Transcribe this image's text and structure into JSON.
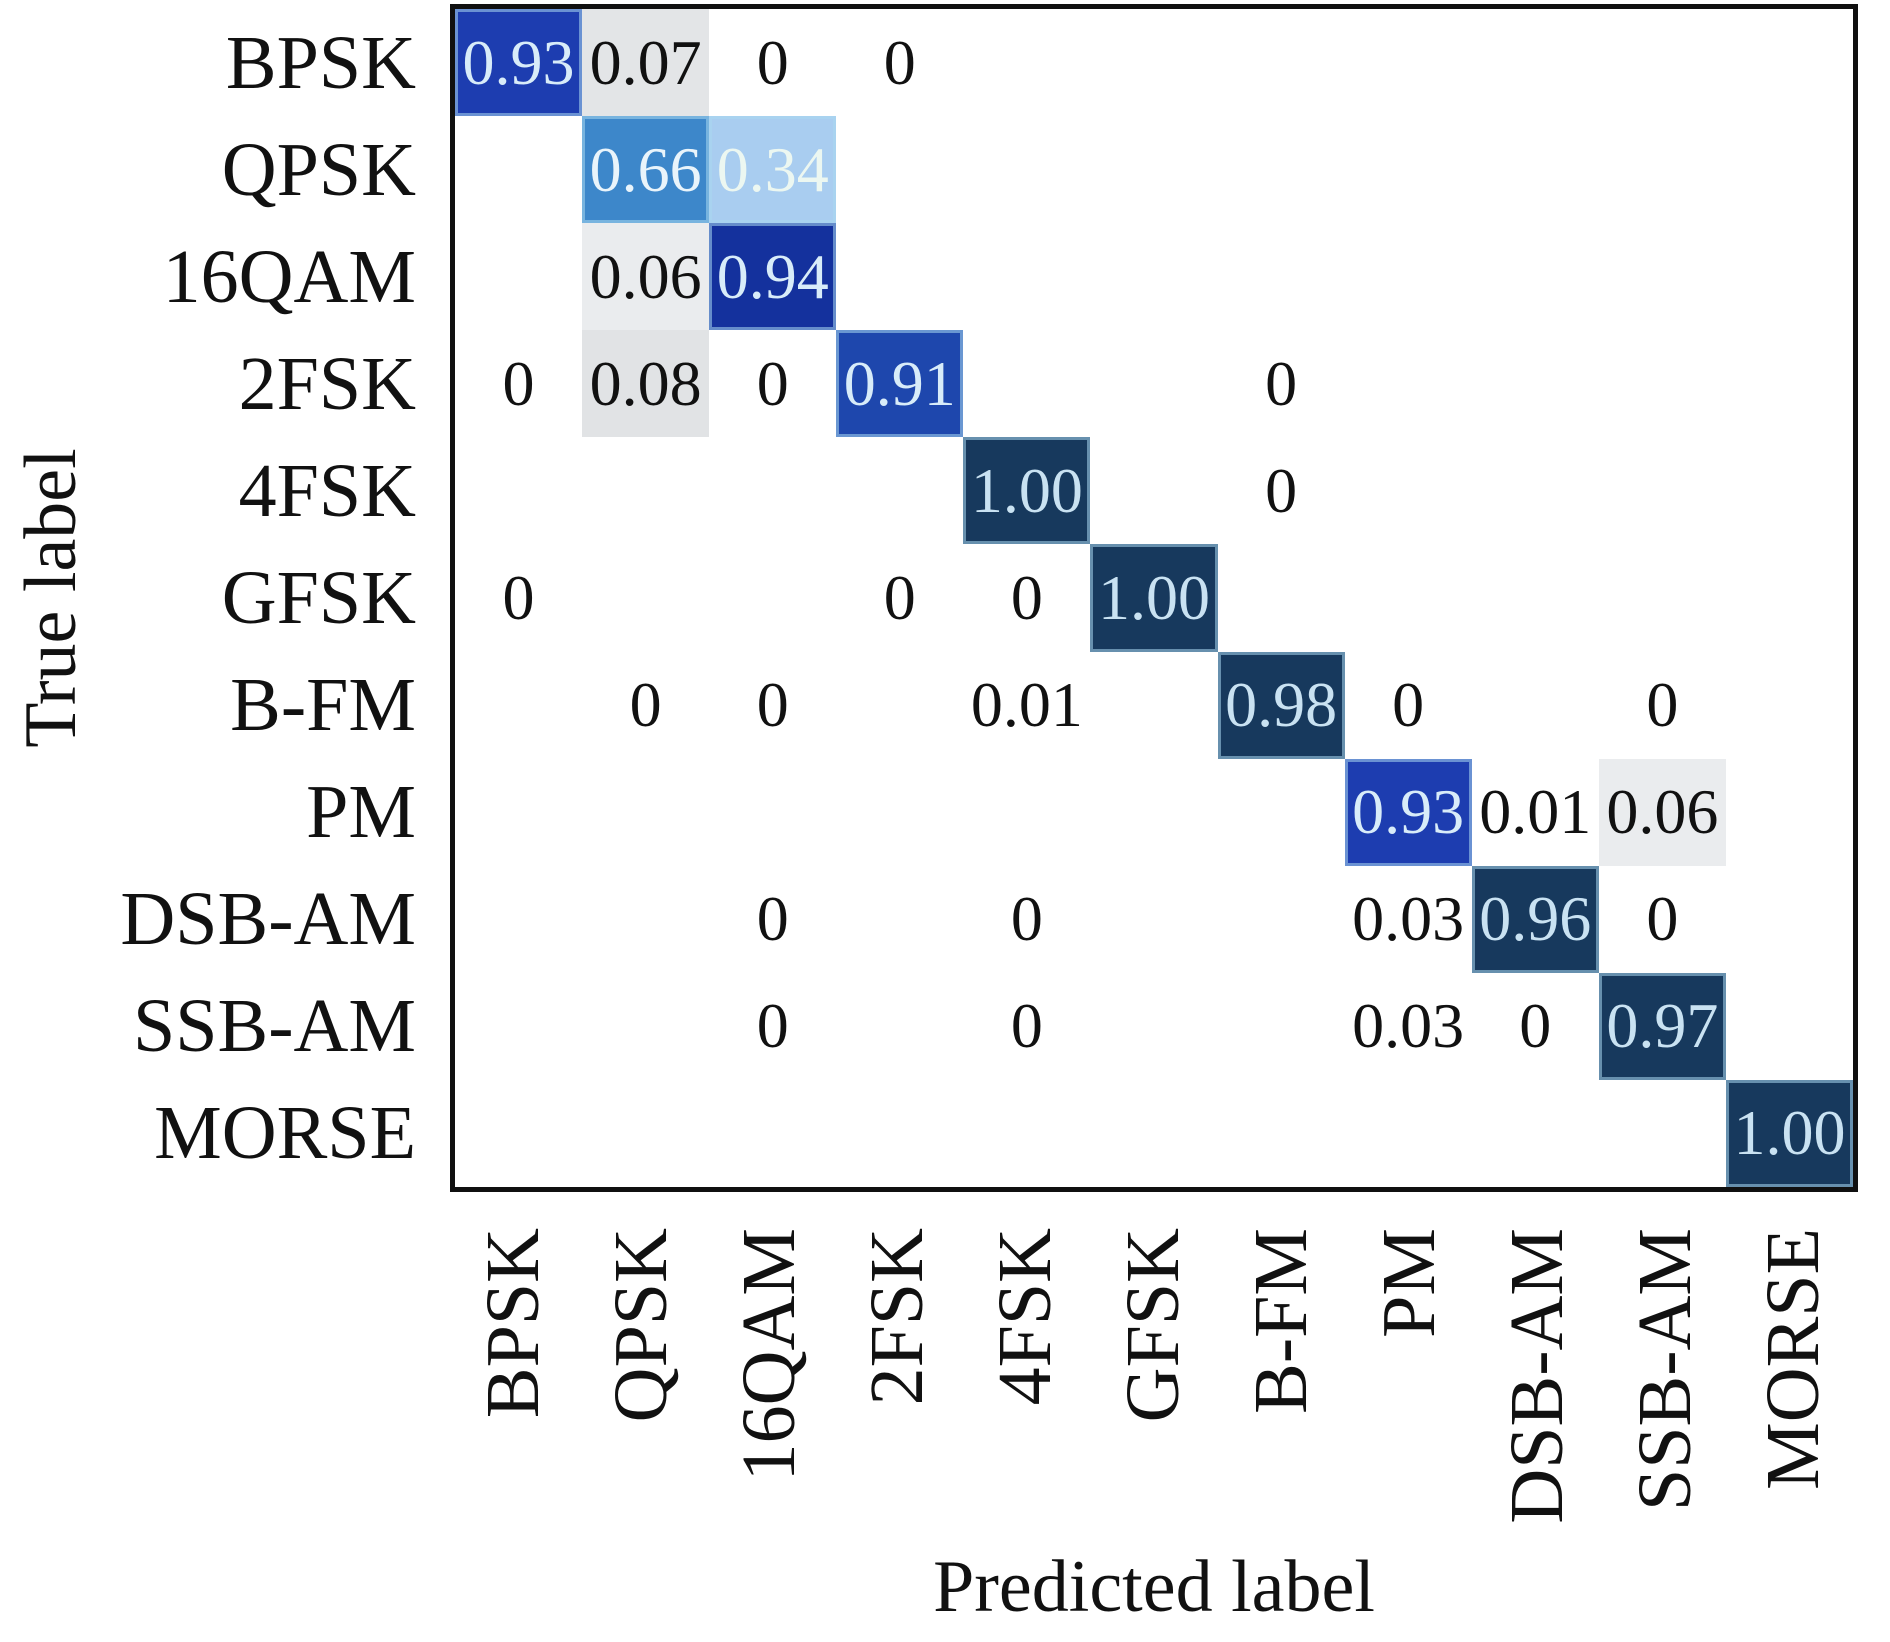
{
  "figure": {
    "kind": "confusion-matrix",
    "background": "#ffffff",
    "frame_color": "#101010"
  },
  "chart_data": {
    "type": "heatmap",
    "title": "",
    "xlabel": "Predicted label",
    "ylabel": "True label",
    "x_categories": [
      "BPSK",
      "QPSK",
      "16QAM",
      "2FSK",
      "4FSK",
      "GFSK",
      "B-FM",
      "PM",
      "DSB-AM",
      "SSB-AM",
      "MORSE"
    ],
    "y_categories": [
      "BPSK",
      "QPSK",
      "16QAM",
      "2FSK",
      "4FSK",
      "GFSK",
      "B-FM",
      "PM",
      "DSB-AM",
      "SSB-AM",
      "MORSE"
    ],
    "colormap": "Blues",
    "legend": "none",
    "grid": false,
    "matrix_display": [
      [
        "0.93",
        "0.07",
        "0",
        "0",
        "",
        "",
        "",
        "",
        "",
        "",
        ""
      ],
      [
        "",
        "0.66",
        "0.34",
        "",
        "",
        "",
        "",
        "",
        "",
        "",
        ""
      ],
      [
        "",
        "0.06",
        "0.94",
        "",
        "",
        "",
        "",
        "",
        "",
        "",
        ""
      ],
      [
        "0",
        "0.08",
        "0",
        "0.91",
        "",
        "",
        "0",
        "",
        "",
        "",
        ""
      ],
      [
        "",
        "",
        "",
        "",
        "1.00",
        "",
        "0",
        "",
        "",
        "",
        ""
      ],
      [
        "0",
        "",
        "",
        "0",
        "0",
        "1.00",
        "",
        "",
        "",
        "",
        ""
      ],
      [
        "",
        "0",
        "0",
        "",
        "0.01",
        "",
        "0.98",
        "0",
        "",
        "0",
        ""
      ],
      [
        "",
        "",
        "",
        "",
        "",
        "",
        "",
        "0.93",
        "0.01",
        "0.06",
        ""
      ],
      [
        "",
        "",
        "0",
        "",
        "0",
        "",
        "",
        "0.03",
        "0.96",
        "0",
        ""
      ],
      [
        "",
        "",
        "0",
        "",
        "0",
        "",
        "",
        "0.03",
        "0",
        "0.97",
        ""
      ],
      [
        "",
        "",
        "",
        "",
        "",
        "",
        "",
        "",
        "",
        "",
        "1.00"
      ]
    ],
    "value_styles": {
      "0": {
        "bg": "#ffffff",
        "fg": "#111111",
        "edge": false
      },
      "0.01": {
        "bg": "#ffffff",
        "fg": "#111111",
        "edge": false
      },
      "0.03": {
        "bg": "#ffffff",
        "fg": "#111111",
        "edge": false
      },
      "0.06": {
        "bg": "#eaecee",
        "fg": "#111111",
        "edge": false
      },
      "0.07": {
        "bg": "#e3e5e7",
        "fg": "#111111",
        "edge": false
      },
      "0.08": {
        "bg": "#e1e3e5",
        "fg": "#111111",
        "edge": false
      },
      "0.34": {
        "bg": "#a9cdf0",
        "fg": "#ecf7f1",
        "edge": true
      },
      "0.66": {
        "bg": "#3d87ca",
        "fg": "#e9f4fb",
        "edge": true
      },
      "0.91": {
        "bg": "#1e47ad",
        "fg": "#d8ecf9",
        "edge": true
      },
      "0.93": {
        "bg": "#1d3db0",
        "fg": "#d8ecf9",
        "edge": true
      },
      "0.94": {
        "bg": "#14319d",
        "fg": "#d8ecf9",
        "edge": true
      },
      "0.96": {
        "bg": "#17395d",
        "fg": "#c9e2f2",
        "edge": true
      },
      "0.97": {
        "bg": "#17395d",
        "fg": "#c9e2f2",
        "edge": true
      },
      "0.98": {
        "bg": "#17395d",
        "fg": "#c9e2f2",
        "edge": true
      },
      "1.00": {
        "bg": "#17395d",
        "fg": "#c9e2f2",
        "edge": true
      }
    }
  }
}
